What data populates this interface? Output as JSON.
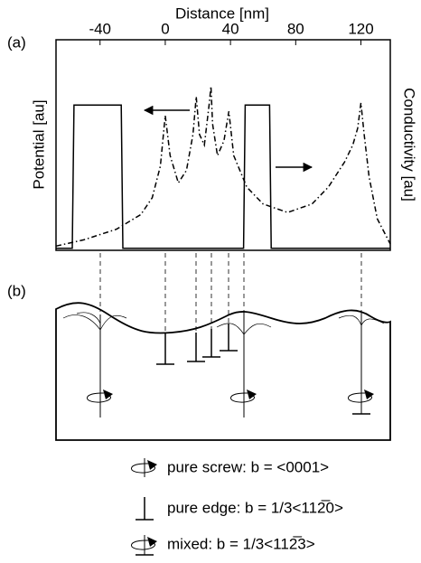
{
  "chart_data": {
    "type": "line",
    "title": "Distance [nm]",
    "ylabel": "Potential [au]",
    "y2label": "Conductivity [au]",
    "xlim": [
      -67,
      138
    ],
    "xticks": [
      -40,
      0,
      40,
      80,
      120
    ],
    "ylim": [
      0,
      1
    ],
    "y2lim": [
      0,
      1
    ],
    "series": [
      {
        "color": "#000000",
        "style": "solid",
        "x": [
          -67,
          -57,
          -56,
          -27,
          -26,
          48,
          49,
          64,
          65,
          138
        ],
        "values": [
          0.01,
          0.01,
          0.69,
          0.69,
          0.01,
          0.01,
          0.69,
          0.69,
          0.01,
          0.01
        ]
      },
      {
        "color": "#000000",
        "style": "dashdot",
        "axis": "y2",
        "x": [
          -67,
          -50,
          -30,
          -15,
          -8,
          -3,
          0,
          3,
          8,
          13,
          17,
          19,
          21,
          24,
          27,
          28,
          29,
          32,
          36,
          39,
          42,
          50,
          60,
          75,
          90,
          100,
          110,
          115,
          118,
          120,
          122,
          125,
          130,
          138
        ],
        "values": [
          0.02,
          0.05,
          0.1,
          0.17,
          0.25,
          0.4,
          0.64,
          0.45,
          0.32,
          0.38,
          0.55,
          0.73,
          0.55,
          0.5,
          0.7,
          0.78,
          0.6,
          0.45,
          0.52,
          0.66,
          0.45,
          0.3,
          0.22,
          0.18,
          0.22,
          0.3,
          0.42,
          0.5,
          0.58,
          0.7,
          0.55,
          0.35,
          0.15,
          0.03
        ]
      }
    ]
  },
  "panel_labels": [
    "(a)",
    "(b)"
  ],
  "legend": [
    "pure screw: b = <0001>",
    "pure edge: b = 1/3<112̅0>",
    "mixed: b = 1/3<112̅3>"
  ]
}
